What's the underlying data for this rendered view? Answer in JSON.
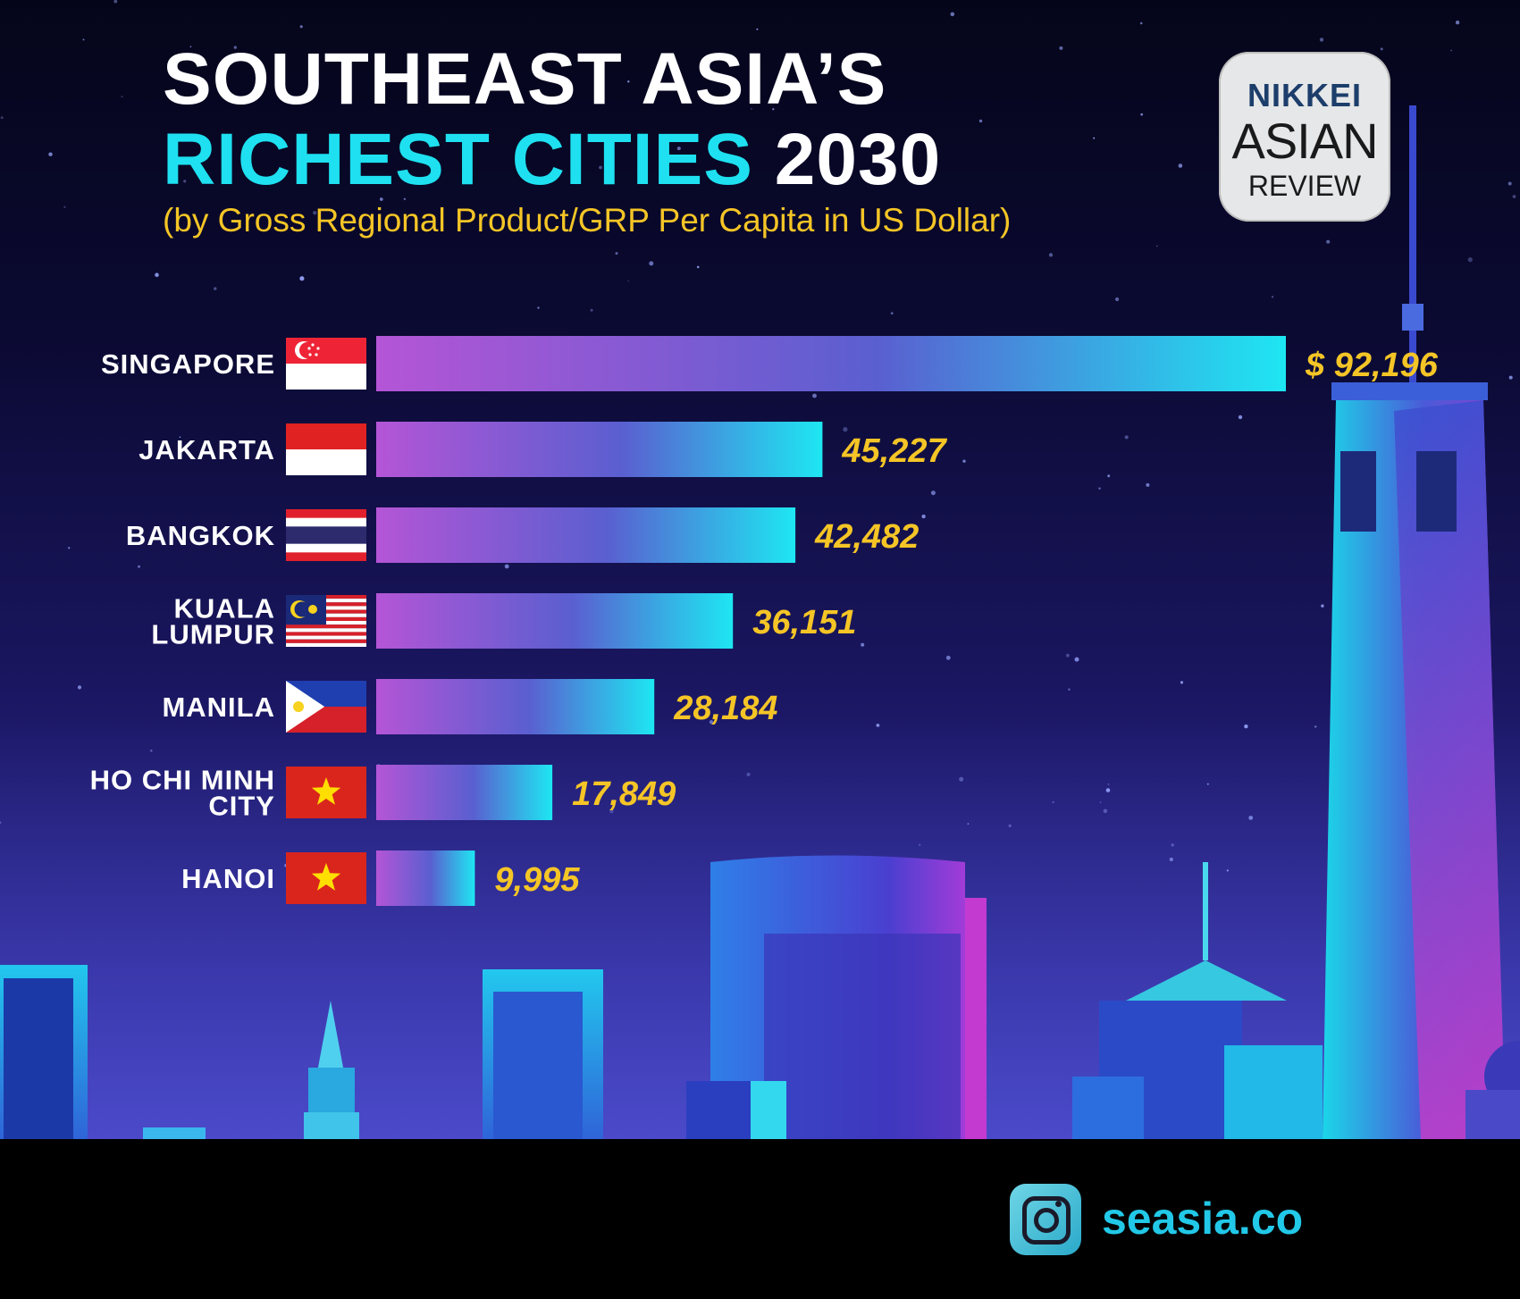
{
  "header": {
    "title_line1": "SOUTHEAST ASIA’S",
    "title_line2": "RICHEST CITIES",
    "title_year": "2030",
    "subtitle": "(by Gross Regional Product/GRP Per Capita in US Dollar)"
  },
  "logo": {
    "line1": "NIKKEI",
    "line2": "ASIAN",
    "line3": "REVIEW"
  },
  "footer": {
    "handle": "seasia.co",
    "icon": "instagram-icon"
  },
  "colors": {
    "bar_start": "#b455d6",
    "bar_end": "#1ee6f2",
    "value_text": "#f5c526",
    "title_accent": "#1ee0f0"
  },
  "chart_data": {
    "type": "bar",
    "orientation": "horizontal",
    "title": "SOUTHEAST ASIA’S RICHEST CITIES 2030",
    "subtitle": "(by Gross Regional Product/GRP Per Capita in US Dollar)",
    "categories": [
      {
        "label": [
          "SINGAPORE"
        ],
        "flag": "singapore"
      },
      {
        "label": [
          "JAKARTA"
        ],
        "flag": "indonesia"
      },
      {
        "label": [
          "BANGKOK"
        ],
        "flag": "thailand"
      },
      {
        "label": [
          "KUALA",
          "LUMPUR"
        ],
        "flag": "malaysia"
      },
      {
        "label": [
          "MANILA"
        ],
        "flag": "philippines"
      },
      {
        "label": [
          "HO CHI MINH",
          "CITY"
        ],
        "flag": "vietnam"
      },
      {
        "label": [
          "HANOI"
        ],
        "flag": "vietnam"
      }
    ],
    "values": [
      92196,
      45227,
      42482,
      36151,
      28184,
      17849,
      9995
    ],
    "value_labels": [
      "$ 92,196",
      "45,227",
      "42,482",
      "36,151",
      "28,184",
      "17,849",
      "9,995"
    ]
  }
}
